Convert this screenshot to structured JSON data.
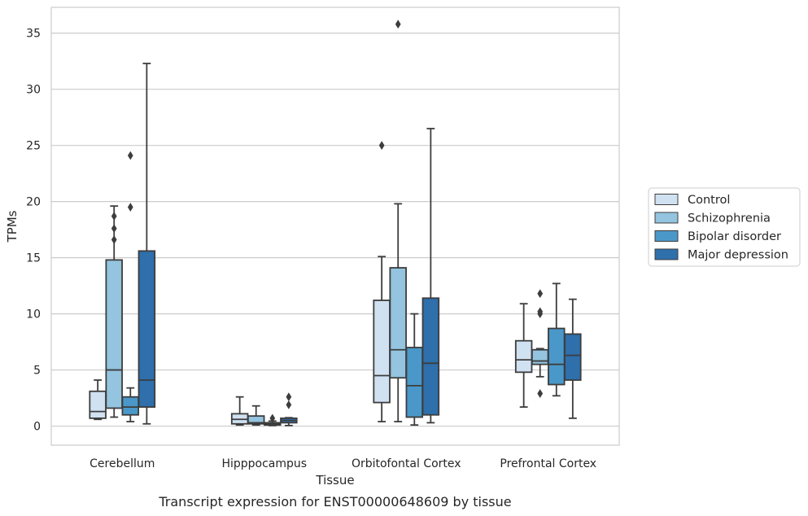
{
  "caption": "Transcript expression for ENST00000648609 by tissue",
  "chart_data": {
    "type": "box",
    "xlabel": "Tissue",
    "ylabel": "TPMs",
    "ylim": [
      -1.7,
      37.3
    ],
    "yticks": [
      0,
      5,
      10,
      15,
      20,
      25,
      30,
      35
    ],
    "grid": "horizontal",
    "legend_position": "right",
    "categories": [
      "Cerebellum",
      "Hipppocampus",
      "Orbitofontal Cortex",
      "Prefrontal Cortex"
    ],
    "series": [
      {
        "name": "Control",
        "color": "#d0e1f2",
        "boxes": [
          {
            "whislo": 0.6,
            "q1": 0.7,
            "med": 1.3,
            "q3": 3.1,
            "whishi": 4.1,
            "fliers": []
          },
          {
            "whislo": 0.1,
            "q1": 0.2,
            "med": 0.6,
            "q3": 1.1,
            "whishi": 2.6,
            "fliers": []
          },
          {
            "whislo": 0.4,
            "q1": 2.1,
            "med": 4.5,
            "q3": 11.2,
            "whishi": 15.1,
            "fliers": [
              25.0
            ]
          },
          {
            "whislo": 1.7,
            "q1": 4.8,
            "med": 5.9,
            "q3": 7.6,
            "whishi": 10.9,
            "fliers": []
          }
        ]
      },
      {
        "name": "Schizophrenia",
        "color": "#94c4df",
        "boxes": [
          {
            "whislo": 0.8,
            "q1": 1.6,
            "med": 5.0,
            "q3": 14.8,
            "whishi": 19.6,
            "fliers": [
              16.6,
              17.6,
              18.7
            ]
          },
          {
            "whislo": 0.1,
            "q1": 0.2,
            "med": 0.3,
            "q3": 0.9,
            "whishi": 1.8,
            "fliers": []
          },
          {
            "whislo": 0.4,
            "q1": 4.3,
            "med": 6.8,
            "q3": 14.1,
            "whishi": 19.8,
            "fliers": [
              35.8
            ]
          },
          {
            "whislo": 4.4,
            "q1": 5.5,
            "med": 5.8,
            "q3": 6.8,
            "whishi": 6.9,
            "fliers": [
              2.9,
              10.0,
              10.2,
              11.8
            ]
          }
        ]
      },
      {
        "name": "Bipolar disorder",
        "color": "#4a98c9",
        "boxes": [
          {
            "whislo": 0.4,
            "q1": 1.0,
            "med": 1.7,
            "q3": 2.6,
            "whishi": 3.4,
            "fliers": [
              19.5,
              24.1
            ]
          },
          {
            "whislo": 0.05,
            "q1": 0.1,
            "med": 0.2,
            "q3": 0.3,
            "whishi": 0.45,
            "fliers": [
              0.7
            ]
          },
          {
            "whislo": 0.1,
            "q1": 0.8,
            "med": 3.6,
            "q3": 7.0,
            "whishi": 10.0,
            "fliers": []
          },
          {
            "whislo": 2.7,
            "q1": 3.7,
            "med": 5.5,
            "q3": 8.7,
            "whishi": 12.7,
            "fliers": []
          }
        ]
      },
      {
        "name": "Major depression",
        "color": "#2e6fac",
        "boxes": [
          {
            "whislo": 0.2,
            "q1": 1.7,
            "med": 4.1,
            "q3": 15.6,
            "whishi": 32.3,
            "fliers": []
          },
          {
            "whislo": 0.05,
            "q1": 0.3,
            "med": 0.5,
            "q3": 0.7,
            "whishi": 0.75,
            "fliers": [
              1.9,
              2.6
            ]
          },
          {
            "whislo": 0.3,
            "q1": 1.0,
            "med": 5.6,
            "q3": 11.4,
            "whishi": 26.5,
            "fliers": []
          },
          {
            "whislo": 0.7,
            "q1": 4.1,
            "med": 6.3,
            "q3": 8.2,
            "whishi": 11.3,
            "fliers": []
          }
        ]
      }
    ]
  }
}
